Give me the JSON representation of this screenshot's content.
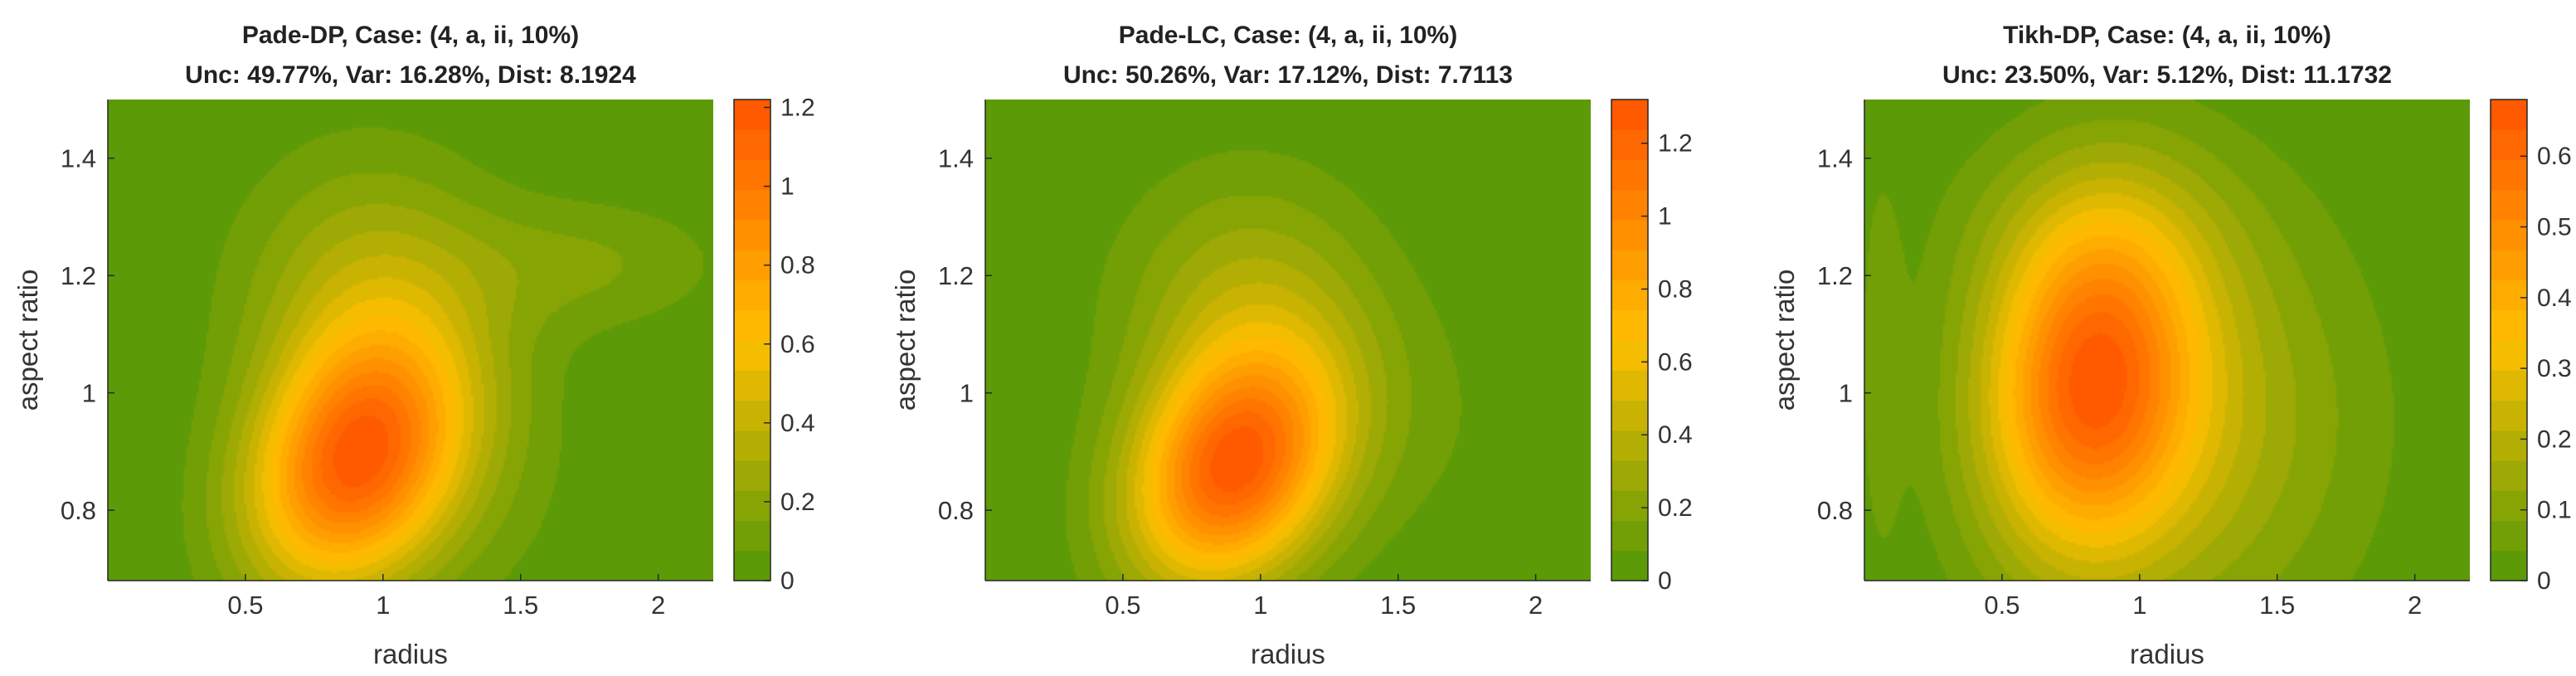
{
  "chart_data": [
    {
      "type": "contour",
      "title": "Pade-DP, Case: (4, a, ii, 10%)",
      "subtitle": "Unc: 49.77%, Var: 16.28%, Dist: 8.1924",
      "xlabel": "radius",
      "ylabel": "aspect ratio",
      "xlim": [
        0,
        2.2
      ],
      "ylim": [
        0.68,
        1.5
      ],
      "xticks": [
        "0.5",
        "1",
        "1.5",
        "2"
      ],
      "yticks": [
        "0.8",
        "1",
        "1.2",
        "1.4"
      ],
      "colorbar": {
        "range": [
          0,
          1.22
        ],
        "ticks": [
          "0",
          "0.2",
          "0.4",
          "0.6",
          "0.8",
          "1",
          "1.2"
        ]
      },
      "peak": {
        "x": 0.9,
        "y": 0.88,
        "value": 1.22
      },
      "colors": {
        "low": "#5c9a07",
        "mid": "#ffc000",
        "high": "#ff5a00"
      }
    },
    {
      "type": "contour",
      "title": "Pade-LC, Case: (4, a, ii, 10%)",
      "subtitle": "Unc: 50.26%, Var: 17.12%, Dist: 7.7113",
      "xlabel": "radius",
      "ylabel": "aspect ratio",
      "xlim": [
        0,
        2.2
      ],
      "ylim": [
        0.68,
        1.5
      ],
      "xticks": [
        "0.5",
        "1",
        "1.5",
        "2"
      ],
      "yticks": [
        "0.8",
        "1",
        "1.2",
        "1.4"
      ],
      "colorbar": {
        "range": [
          0,
          1.32
        ],
        "ticks": [
          "0",
          "0.2",
          "0.4",
          "0.6",
          "0.8",
          "1",
          "1.2"
        ]
      },
      "peak": {
        "x": 0.9,
        "y": 0.87,
        "value": 1.32
      },
      "colors": {
        "low": "#5c9a07",
        "mid": "#ffc000",
        "high": "#ff5a00"
      }
    },
    {
      "type": "contour",
      "title": "Tikh-DP, Case: (4, a, ii, 10%)",
      "subtitle": "Unc: 23.50%, Var: 5.12%, Dist: 11.1732",
      "xlabel": "radius",
      "ylabel": "aspect ratio",
      "xlim": [
        0,
        2.2
      ],
      "ylim": [
        0.68,
        1.5
      ],
      "xticks": [
        "0.5",
        "1",
        "1.5",
        "2"
      ],
      "yticks": [
        "0.8",
        "1",
        "1.2",
        "1.4"
      ],
      "colorbar": {
        "range": [
          0,
          0.68
        ],
        "ticks": [
          "0",
          "0.1",
          "0.2",
          "0.3",
          "0.4",
          "0.5",
          "0.6"
        ]
      },
      "peak": {
        "x": 0.85,
        "y": 1.0,
        "value": 0.68
      },
      "colors": {
        "low": "#5c9a07",
        "mid": "#ffc000",
        "high": "#ff5a00"
      }
    }
  ]
}
